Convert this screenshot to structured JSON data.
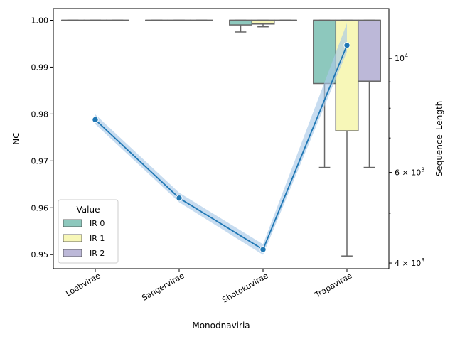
{
  "chart_data": {
    "type": "box",
    "xlabel": "Monodnaviria",
    "ylabel_left": "NC",
    "ylabel_right": "Sequence_Length",
    "categories": [
      "Loebvirae",
      "Sangervirae",
      "Shotokuvirae",
      "Trapavirae"
    ],
    "left_axis": {
      "ylim": [
        0.947,
        1.0025
      ],
      "ticks": [
        0.95,
        0.96,
        0.97,
        0.98,
        0.99,
        1.0
      ],
      "tick_labels": [
        "0.95",
        "0.96",
        "0.97",
        "0.98",
        "0.99",
        "1.00"
      ]
    },
    "right_axis": {
      "scale": "log",
      "ylim": [
        3900,
        12500
      ],
      "major_ticks": [
        4000,
        6000,
        10000
      ],
      "major_tick_labels": [
        "4 × 10",
        "6 × 10",
        "10"
      ],
      "major_tick_exponents": [
        "3",
        "3",
        "4"
      ],
      "minor_ticks": [
        5000,
        7000,
        8000,
        9000
      ]
    },
    "legend": {
      "title": "Value",
      "position": "lower-left",
      "entries": [
        {
          "label": "IR 0",
          "color": "#8dc8bd"
        },
        {
          "label": "IR 1",
          "color": "#f7f7b8"
        },
        {
          "label": "IR 2",
          "color": "#bcb8d8"
        }
      ]
    },
    "series": [
      {
        "name": "IR 0",
        "color": "#8dc8bd",
        "boxes": [
          {
            "category": "Loebvirae",
            "whislo": 1.0,
            "q1": 1.0,
            "median": 1.0,
            "q3": 1.0,
            "whishi": 1.0
          },
          {
            "category": "Sangervirae",
            "whislo": 1.0,
            "q1": 1.0,
            "median": 1.0,
            "q3": 1.0,
            "whishi": 1.0
          },
          {
            "category": "Shotokuvirae",
            "whislo": 0.9975,
            "q1": 0.999,
            "median": 1.0,
            "q3": 1.0,
            "whishi": 1.0
          },
          {
            "category": "Trapavirae",
            "whislo": 0.9686,
            "q1": 0.9865,
            "median": 1.0,
            "q3": 1.0,
            "whishi": 1.0
          }
        ]
      },
      {
        "name": "IR 1",
        "color": "#f7f7b8",
        "boxes": [
          {
            "category": "Loebvirae",
            "whislo": 1.0,
            "q1": 1.0,
            "median": 1.0,
            "q3": 1.0,
            "whishi": 1.0
          },
          {
            "category": "Sangervirae",
            "whislo": 1.0,
            "q1": 1.0,
            "median": 1.0,
            "q3": 1.0,
            "whishi": 1.0
          },
          {
            "category": "Shotokuvirae",
            "whislo": 0.9986,
            "q1": 0.9992,
            "median": 1.0,
            "q3": 1.0,
            "whishi": 1.0
          },
          {
            "category": "Trapavirae",
            "whislo": 0.9497,
            "q1": 0.9764,
            "median": 1.0,
            "q3": 1.0,
            "whishi": 1.0
          }
        ]
      },
      {
        "name": "IR 2",
        "color": "#bcb8d8",
        "boxes": [
          {
            "category": "Loebvirae",
            "whislo": 1.0,
            "q1": 1.0,
            "median": 1.0,
            "q3": 1.0,
            "whishi": 1.0
          },
          {
            "category": "Sangervirae",
            "whislo": 1.0,
            "q1": 1.0,
            "median": 1.0,
            "q3": 1.0,
            "whishi": 1.0
          },
          {
            "category": "Shotokuvirae",
            "whislo": 1.0,
            "q1": 1.0,
            "median": 1.0,
            "q3": 1.0,
            "whishi": 1.0
          },
          {
            "category": "Trapavirae",
            "whislo": 0.9686,
            "q1": 0.987,
            "median": 1.0,
            "q3": 1.0,
            "whishi": 1.0
          }
        ]
      }
    ],
    "line": {
      "axis": "right",
      "color": "#1f77b4",
      "ci_color": "#a9c9e8",
      "values": [
        7600,
        5350,
        4250,
        10600
      ],
      "ci_low": [
        7450,
        5250,
        4150,
        10300
      ],
      "ci_high": [
        7780,
        5480,
        4350,
        11700
      ]
    }
  }
}
